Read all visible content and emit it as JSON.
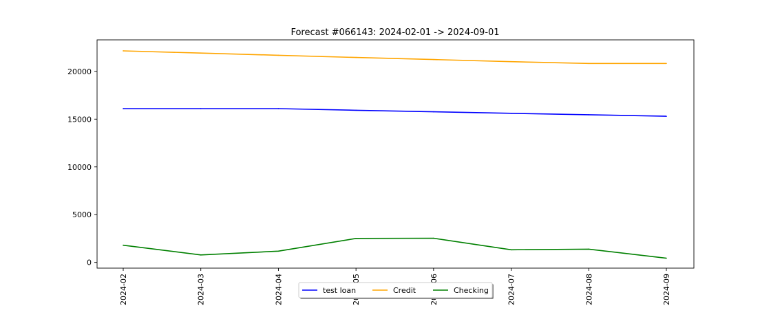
{
  "chart_data": {
    "type": "line",
    "title": "Forecast #066143: 2024-02-01 -> 2024-09-01",
    "xlabel": "",
    "ylabel": "",
    "categories": [
      "2024-02",
      "2024-03",
      "2024-04",
      "2024-05",
      "2024-06",
      "2024-07",
      "2024-08",
      "2024-09"
    ],
    "ylim": [
      -600,
      23300
    ],
    "yticks": [
      0,
      5000,
      10000,
      15000,
      20000
    ],
    "grid": false,
    "legend_position": "bottom-center",
    "series": [
      {
        "name": "test loan",
        "color": "#0000ff",
        "values": [
          16100,
          16100,
          16100,
          15930,
          15770,
          15610,
          15460,
          15300
        ]
      },
      {
        "name": "Credit",
        "color": "#ffa500",
        "values": [
          22150,
          21920,
          21690,
          21460,
          21240,
          21020,
          20830,
          20830
        ]
      },
      {
        "name": "Checking",
        "color": "#008000",
        "values": [
          1800,
          780,
          1180,
          2510,
          2530,
          1320,
          1390,
          440
        ]
      }
    ]
  }
}
